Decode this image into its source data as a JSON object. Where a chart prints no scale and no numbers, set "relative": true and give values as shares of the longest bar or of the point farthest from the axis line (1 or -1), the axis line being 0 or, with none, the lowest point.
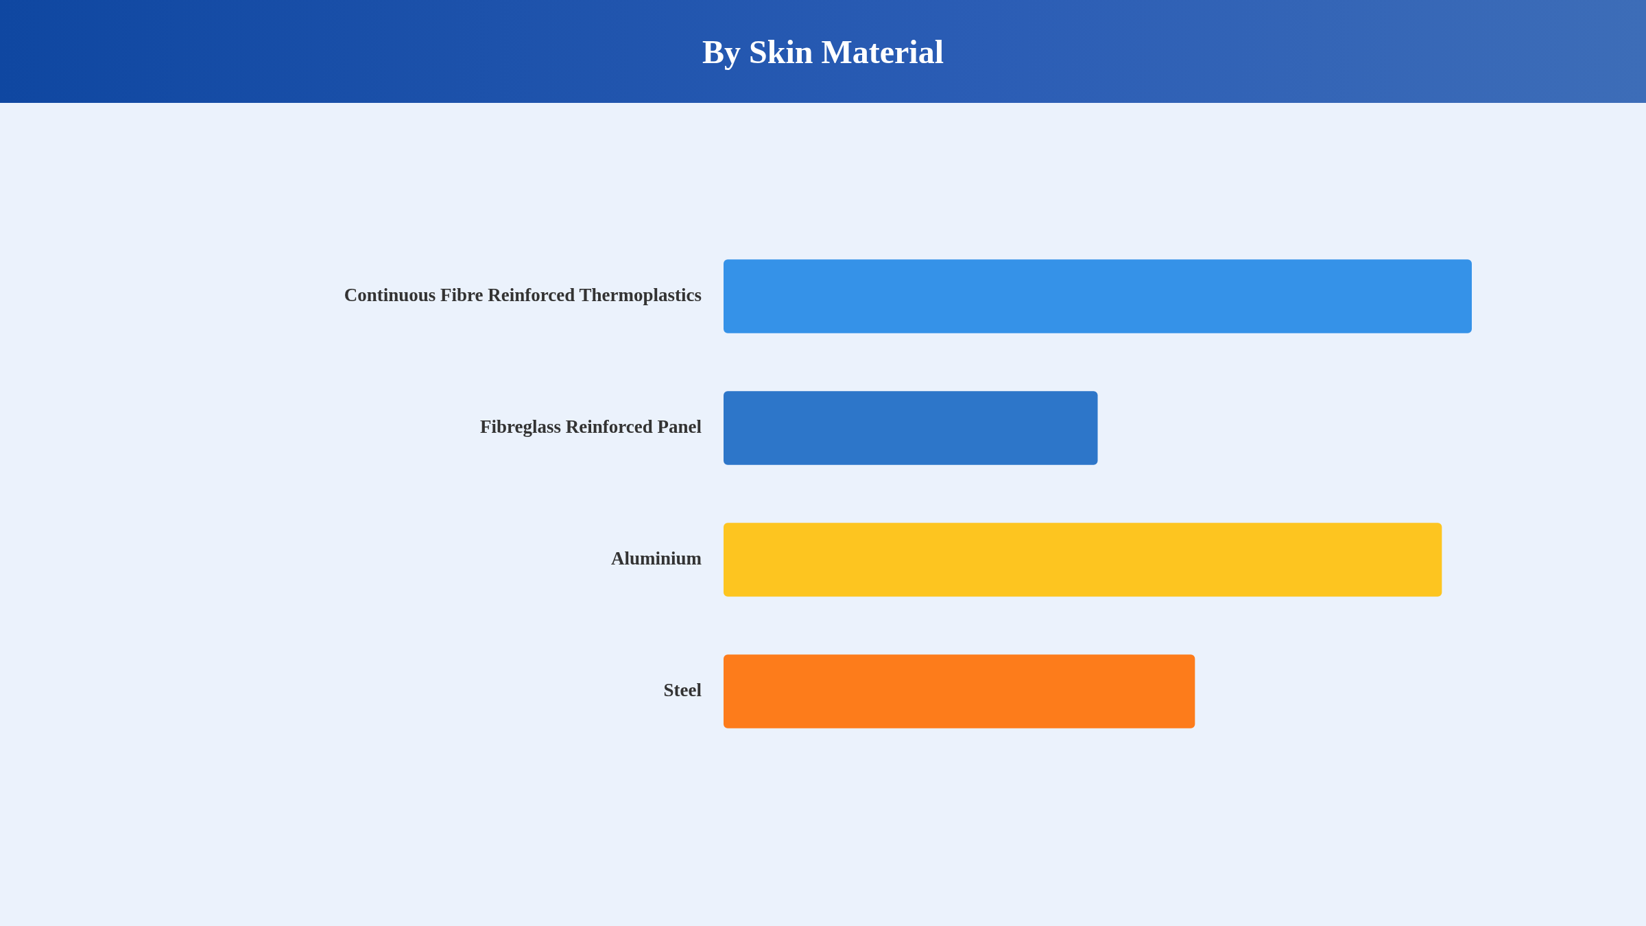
{
  "chart_data": {
    "type": "bar",
    "title": "By Skin Material",
    "orientation": "horizontal",
    "relative": true,
    "categories": [
      "Continuous Fibre Reinforced Thermoplastics",
      "Fibreglass Reinforced Panel",
      "Aluminium",
      "Steel"
    ],
    "values": [
      1,
      0.5,
      0.96,
      0.63
    ],
    "colors": [
      "#3592e8",
      "#2d76c9",
      "#fdc520",
      "#fd7c1b"
    ],
    "legend": false
  }
}
